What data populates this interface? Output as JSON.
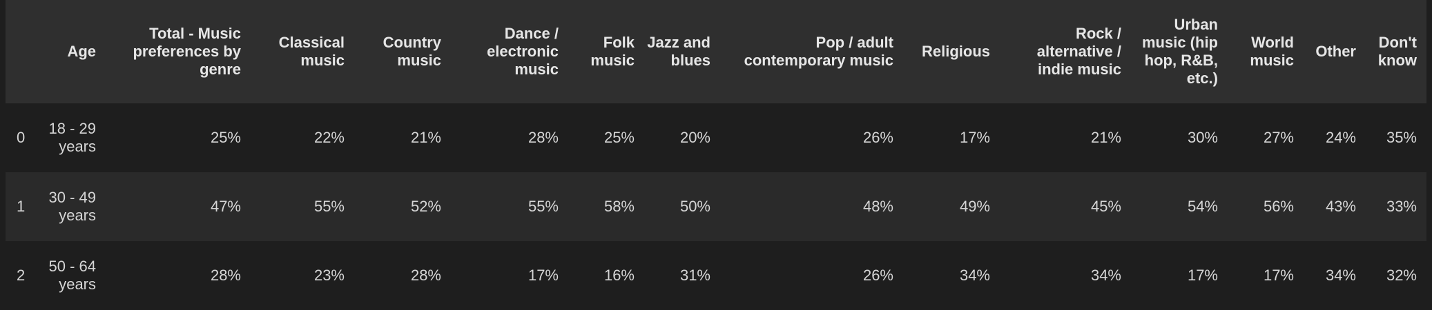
{
  "table": {
    "columns": [
      "",
      "Age",
      "Total - Music preferences by genre",
      "Classical music",
      "Country music",
      "Dance / electronic music",
      "Folk music",
      "Jazz and blues",
      "Pop / adult contemporary music",
      "Religious",
      "Rock / alternative / indie music",
      "Urban music (hip hop, R&B, etc.)",
      "World music",
      "Other",
      "Don't know"
    ],
    "rows": [
      {
        "index": "0",
        "cells": [
          "18 - 29 years",
          "25%",
          "22%",
          "21%",
          "28%",
          "25%",
          "20%",
          "26%",
          "17%",
          "21%",
          "30%",
          "27%",
          "24%",
          "35%"
        ]
      },
      {
        "index": "1",
        "cells": [
          "30 - 49 years",
          "47%",
          "55%",
          "52%",
          "55%",
          "58%",
          "50%",
          "48%",
          "49%",
          "45%",
          "54%",
          "56%",
          "43%",
          "33%"
        ]
      },
      {
        "index": "2",
        "cells": [
          "50 - 64 years",
          "28%",
          "23%",
          "28%",
          "17%",
          "16%",
          "31%",
          "26%",
          "34%",
          "34%",
          "17%",
          "17%",
          "34%",
          "32%"
        ]
      }
    ]
  },
  "colors": {
    "background": "#1e1e1e",
    "header_background": "#2f2f2f",
    "row_alt_background": "#2a2a2a",
    "text": "#d6d6d6"
  }
}
